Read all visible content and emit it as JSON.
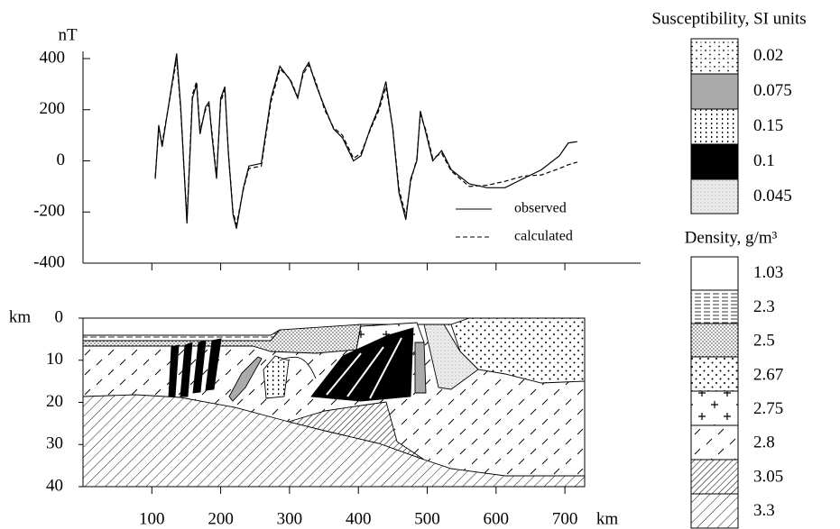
{
  "chart_data": [
    {
      "type": "line",
      "ylabel": "nT",
      "x": [
        105,
        110,
        115,
        126,
        136,
        142,
        151,
        159,
        165,
        170,
        178,
        183,
        187,
        194,
        200,
        206,
        211,
        218,
        223,
        233,
        241,
        259,
        273,
        286,
        301,
        312,
        320,
        328,
        338,
        351,
        364,
        377,
        393,
        404,
        417,
        430,
        440,
        450,
        459,
        469,
        476,
        485,
        490,
        498,
        508,
        521,
        535,
        561,
        587,
        613,
        639,
        666,
        692,
        705,
        718
      ],
      "series": [
        {
          "name": "observed",
          "color": "#000000",
          "style": "solid",
          "values": [
            -70,
            140,
            55,
            245,
            420,
            210,
            -245,
            245,
            300,
            105,
            210,
            230,
            105,
            -70,
            245,
            290,
            35,
            -210,
            -265,
            -105,
            -20,
            -10,
            245,
            370,
            315,
            245,
            350,
            385,
            300,
            210,
            125,
            90,
            0,
            20,
            125,
            210,
            310,
            125,
            -125,
            -230,
            -70,
            0,
            195,
            110,
            0,
            40,
            -35,
            -90,
            -105,
            -105,
            -70,
            -35,
            20,
            70,
            75
          ]
        },
        {
          "name": "calculated",
          "color": "#000000",
          "style": "dashed",
          "values": [
            -60,
            120,
            70,
            240,
            400,
            200,
            -230,
            260,
            310,
            120,
            200,
            220,
            120,
            -60,
            230,
            280,
            40,
            -200,
            -250,
            -110,
            -30,
            -20,
            230,
            360,
            320,
            250,
            340,
            375,
            310,
            200,
            130,
            100,
            10,
            30,
            120,
            200,
            290,
            130,
            -110,
            -215,
            -80,
            10,
            180,
            120,
            10,
            30,
            -40,
            -100,
            -95,
            -80,
            -60,
            -55,
            -30,
            -15,
            -5
          ]
        }
      ],
      "xlim": [
        0,
        810
      ],
      "xticks": [
        100,
        200,
        300,
        400,
        500,
        600,
        700
      ],
      "ylim": [
        -400,
        400
      ],
      "yticks": [
        400,
        200,
        0,
        -200,
        -400
      ],
      "legend": "lower right"
    },
    {
      "type": "section",
      "ylabel": "km",
      "xlabel": "km",
      "xlim": [
        0,
        728
      ],
      "xticks": [
        100,
        200,
        300,
        400,
        500,
        600,
        700
      ],
      "ylim": [
        40,
        0
      ],
      "yticks": [
        0,
        10,
        20,
        30,
        40
      ]
    }
  ],
  "legends": [
    {
      "title": "Susceptibility, SI units",
      "items": [
        0.02,
        0.075,
        0.15,
        0.1,
        0.045
      ]
    },
    {
      "title": "Density, g/m³",
      "items": [
        1.03,
        2.3,
        2.5,
        2.67,
        2.75,
        2.8,
        3.05,
        3.3
      ]
    }
  ]
}
